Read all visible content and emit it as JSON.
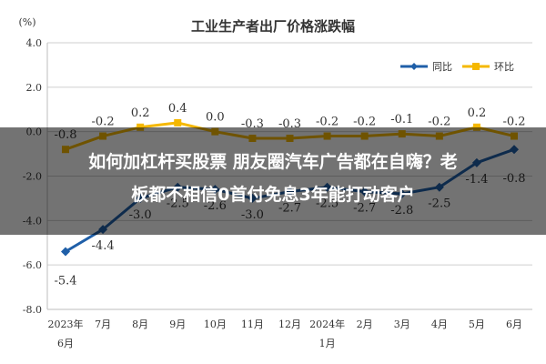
{
  "overlay": {
    "line1": "如何加杠杆买股票 朋友圈汽车广告都在自嗨？老",
    "line2": "板都不相信0首付免息3年能打动客户"
  },
  "chart_data": {
    "type": "line",
    "title": "工业生产者出厂价格涨跌幅",
    "ylabel": "(%)",
    "ylim": [
      -8.0,
      4.0
    ],
    "yticks": [
      "4.0",
      "2.0",
      "0.0",
      "-2.0",
      "-4.0",
      "-6.0",
      "-8.0"
    ],
    "grid": true,
    "legend_position": "top-right",
    "categories": [
      [
        "2023年",
        "6月"
      ],
      [
        "7月"
      ],
      [
        "8月"
      ],
      [
        "9月"
      ],
      [
        "10月"
      ],
      [
        "11月"
      ],
      [
        "12月"
      ],
      [
        "2024年",
        "1月"
      ],
      [
        "2月"
      ],
      [
        "3月"
      ],
      [
        "4月"
      ],
      [
        "5月"
      ],
      [
        "6月"
      ]
    ],
    "series": [
      {
        "name": "同比",
        "color": "#1f5fa8",
        "values": [
          -5.4,
          -4.4,
          -3.0,
          -2.5,
          -2.6,
          -3.0,
          -2.7,
          -2.5,
          -2.7,
          -2.8,
          -2.5,
          -1.4,
          -0.8
        ],
        "labels": [
          "-5.4",
          "-4.4",
          "-3.0",
          "-2.5",
          "-2.6",
          "-3.0",
          "-2.7",
          "-2.5",
          "-2.7",
          "-2.8",
          "-2.5",
          "-1.4",
          "-0.8"
        ]
      },
      {
        "name": "环比",
        "color": "#f5b800",
        "values": [
          -0.8,
          -0.2,
          0.2,
          0.4,
          0.0,
          -0.3,
          -0.3,
          -0.2,
          -0.2,
          -0.1,
          -0.2,
          0.2,
          -0.2
        ],
        "labels": [
          "-0.8",
          "-0.2",
          "0.2",
          "0.4",
          "0.0",
          "-0.3",
          "-0.3",
          "-0.2",
          "-0.2",
          "-0.1",
          "-0.2",
          "0.2",
          "-0.2"
        ]
      }
    ]
  }
}
